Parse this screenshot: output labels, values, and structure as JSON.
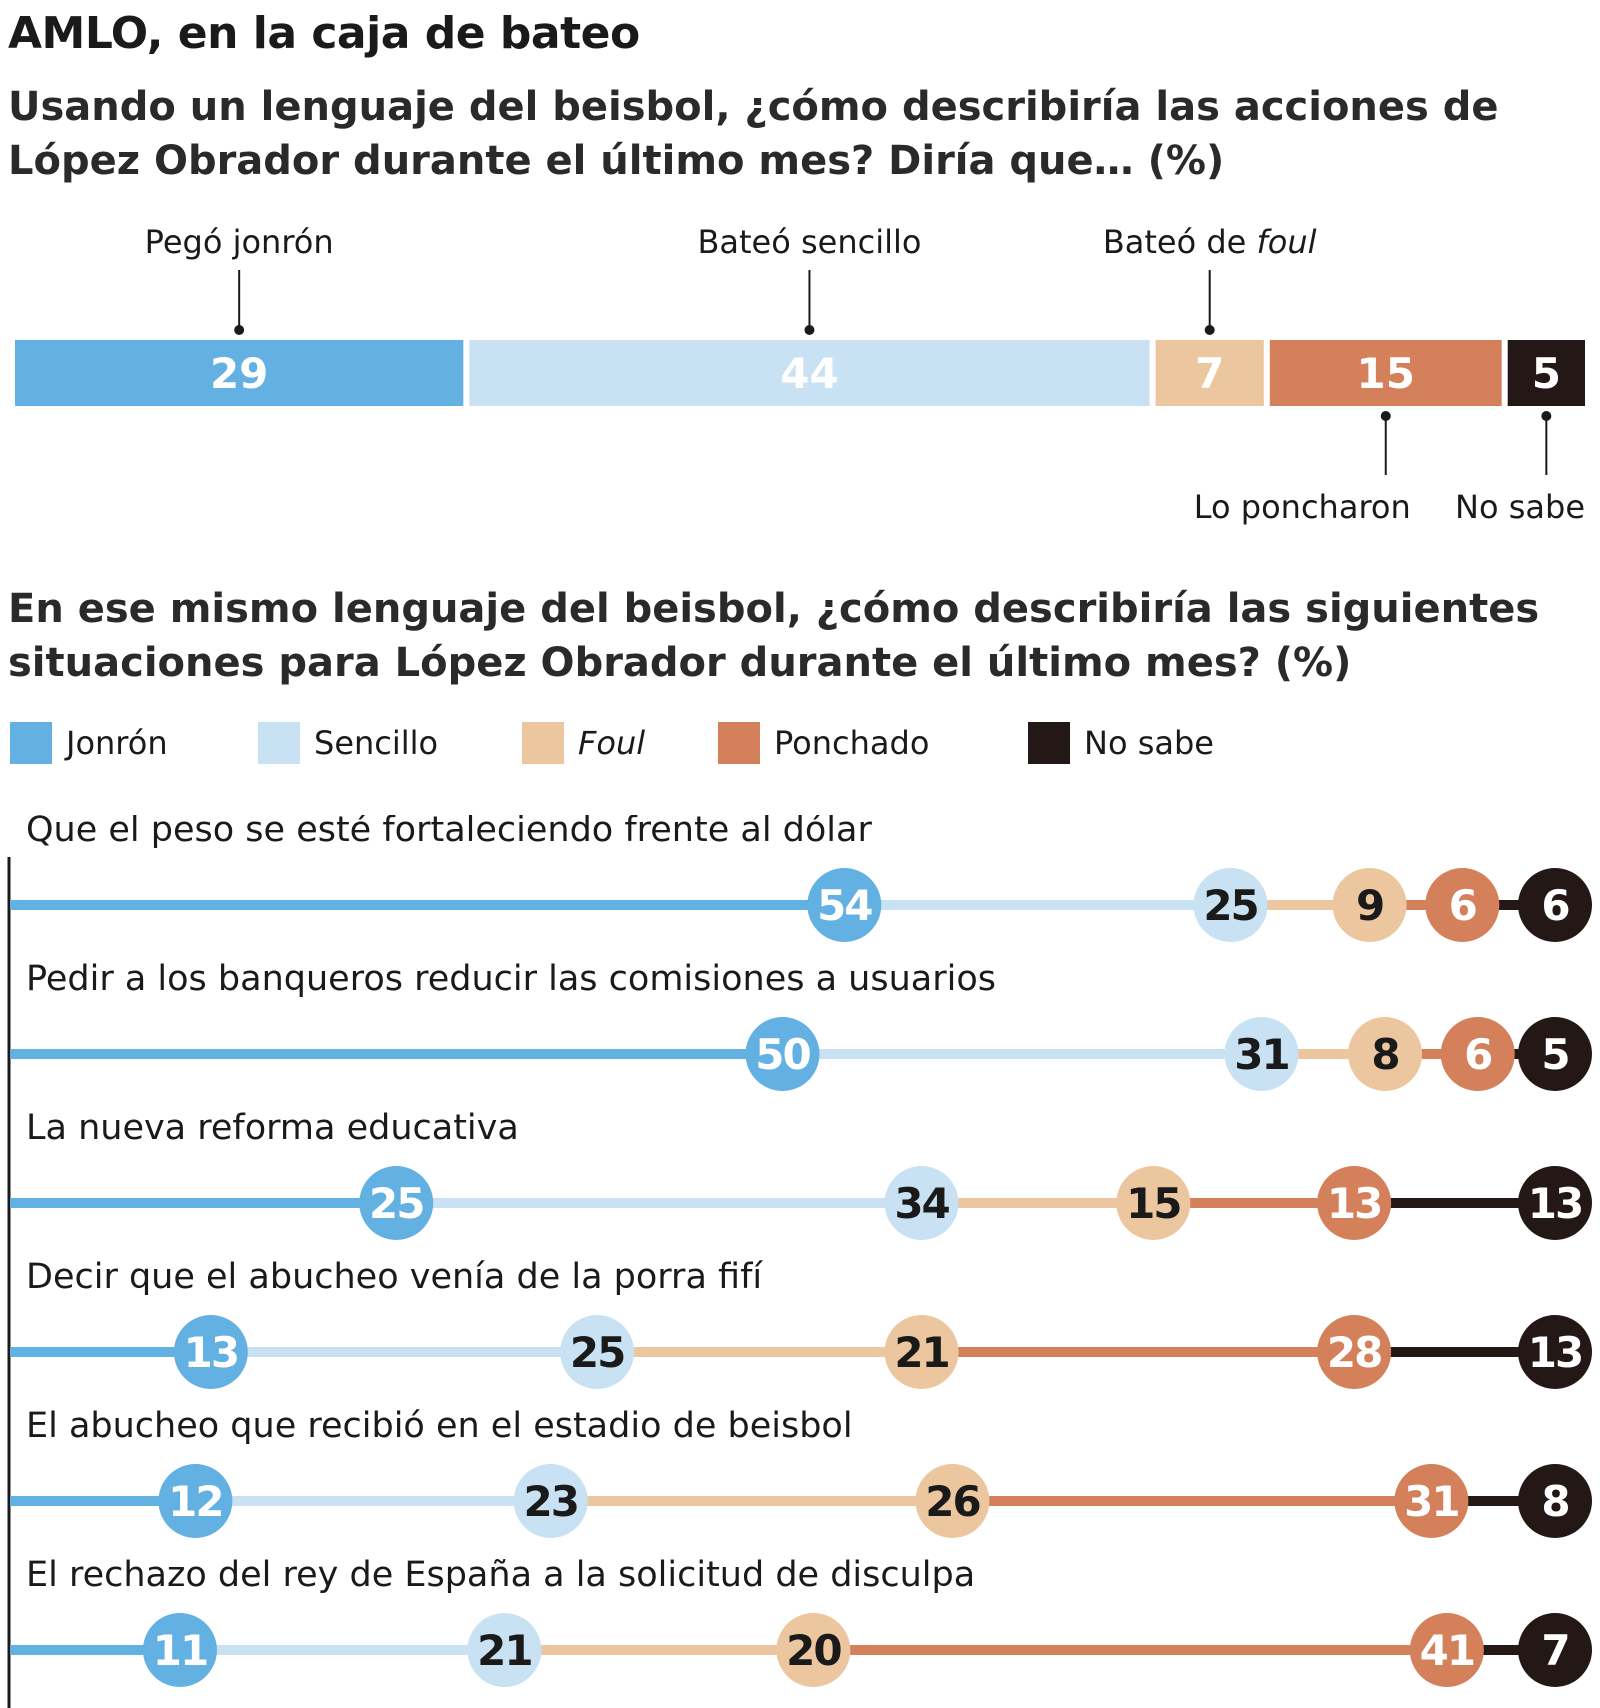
{
  "title": "AMLO, en la caja de bateo",
  "colors": {
    "jonron": "#63b0e3",
    "sencillo": "#c8e1f3",
    "foul": "#ecc69e",
    "ponchado": "#d4805a",
    "nosabe": "#231815"
  },
  "chart_data": [
    {
      "type": "bar",
      "orientation": "horizontal-stacked",
      "title": "Usando un lenguaje del beisbol, ¿cómo describiría las acciones de López Obrador durante el último mes? Diría que… (%)",
      "categories": [
        "Pegó jonrón",
        "Bateó sencillo",
        "Bateó de foul",
        "Lo poncharon",
        "No sabe"
      ],
      "values": [
        29,
        44,
        7,
        15,
        5
      ],
      "label_position": [
        "top",
        "top",
        "top",
        "bottom",
        "bottom"
      ],
      "xlim": [
        0,
        100
      ]
    },
    {
      "type": "scatter",
      "style": "cumulative-dot-line",
      "title": "En ese mismo lenguaje del beisbol, ¿cómo describiría las siguientes situaciones para López Obrador durante el último mes? (%)",
      "series": [
        {
          "name": "Jonrón",
          "italic": false
        },
        {
          "name": "Sencillo",
          "italic": false
        },
        {
          "name": "Foul",
          "italic": true
        },
        {
          "name": "Ponchado",
          "italic": false
        },
        {
          "name": "No sabe",
          "italic": false
        }
      ],
      "rows": [
        {
          "label": "Que el peso se esté fortaleciendo frente al dólar",
          "values": [
            54,
            25,
            9,
            6,
            6
          ]
        },
        {
          "label": "Pedir a los banqueros reducir las comisiones a usuarios",
          "values": [
            50,
            31,
            8,
            6,
            5
          ]
        },
        {
          "label": "La nueva reforma educativa",
          "values": [
            25,
            34,
            15,
            13,
            13
          ]
        },
        {
          "label": "Decir que el abucheo venía de la porra fifí",
          "values": [
            13,
            25,
            21,
            28,
            13
          ]
        },
        {
          "label": "El abucheo que recibió en el estadio de beisbol",
          "values": [
            12,
            23,
            26,
            31,
            8
          ]
        },
        {
          "label": "El rechazo del rey de España a la solicitud de disculpa",
          "values": [
            11,
            21,
            20,
            41,
            7
          ]
        }
      ],
      "legend": "top-left"
    }
  ]
}
